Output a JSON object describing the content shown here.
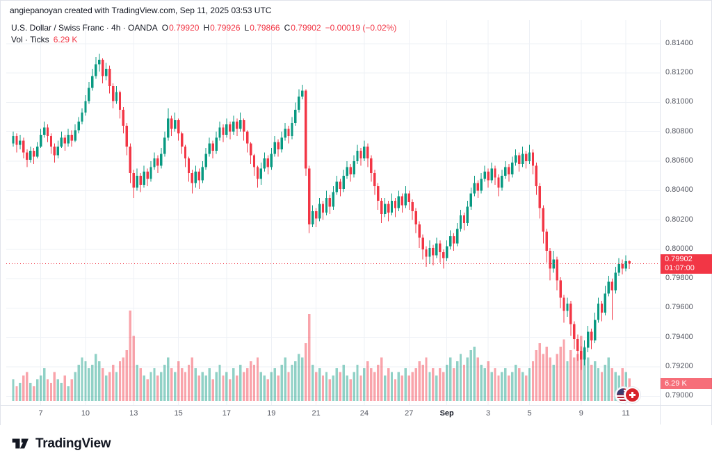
{
  "attribution": "angiepanoyan created with TradingView.com, Sep 11, 2025 03:53 UTC",
  "legend": {
    "title": "U.S. Dollar / Swiss Franc · 4h · OANDA",
    "ohlc": [
      {
        "label": "O",
        "value": "0.79920"
      },
      {
        "label": "H",
        "value": "0.79926"
      },
      {
        "label": "L",
        "value": "0.79866"
      },
      {
        "label": "C",
        "value": "0.79902"
      }
    ],
    "change": "−0.00019 (−0.02%)",
    "volume_label": "Vol · Ticks",
    "volume_value": "6.29 K"
  },
  "badges": {
    "price": "0.79902",
    "countdown": "01:07:00",
    "volume": "6.29 K"
  },
  "footer": {
    "brand": "TradingView"
  },
  "colors": {
    "up": "#089981",
    "down": "#F23645",
    "vol_up": "rgba(8,153,129,0.45)",
    "vol_down": "rgba(242,54,69,0.45)",
    "grid": "#eef1f6",
    "axis_text": "#50535e",
    "last_price_line": "#F23645"
  },
  "chart_data": {
    "type": "candlestick",
    "title": "U.S. Dollar / Swiss Franc",
    "interval": "4h",
    "exchange": "OANDA",
    "last_price": 0.79902,
    "price_axis": {
      "min": 0.7894,
      "max": 0.8156,
      "ticks": [
        "0.81400",
        "0.81200",
        "0.81000",
        "0.80800",
        "0.80600",
        "0.80400",
        "0.80200",
        "0.80000",
        "0.79800",
        "0.79600",
        "0.79400",
        "0.79200",
        "0.79000"
      ]
    },
    "time_axis": [
      {
        "label": "7",
        "index": 8
      },
      {
        "label": "10",
        "index": 21
      },
      {
        "label": "13",
        "index": 35
      },
      {
        "label": "15",
        "index": 48
      },
      {
        "label": "17",
        "index": 62
      },
      {
        "label": "19",
        "index": 75
      },
      {
        "label": "21",
        "index": 88
      },
      {
        "label": "24",
        "index": 102
      },
      {
        "label": "27",
        "index": 115
      },
      {
        "label": "Sep",
        "index": 126,
        "bold": true
      },
      {
        "label": "3",
        "index": 138
      },
      {
        "label": "5",
        "index": 150
      },
      {
        "label": "9",
        "index": 165
      },
      {
        "label": "11",
        "index": 178
      }
    ],
    "vol_max": 25,
    "columns": [
      "open",
      "high",
      "low",
      "close",
      "volume_k"
    ],
    "candles": [
      [
        0.8072,
        0.808,
        0.807,
        0.8077,
        6
      ],
      [
        0.8077,
        0.8079,
        0.8066,
        0.8071,
        4
      ],
      [
        0.8071,
        0.8078,
        0.8068,
        0.8074,
        5
      ],
      [
        0.8074,
        0.8076,
        0.8062,
        0.8066,
        7
      ],
      [
        0.8066,
        0.8068,
        0.8056,
        0.8061,
        8
      ],
      [
        0.8061,
        0.807,
        0.8059,
        0.8067,
        5
      ],
      [
        0.8067,
        0.8069,
        0.8058,
        0.8063,
        4
      ],
      [
        0.8063,
        0.8073,
        0.8062,
        0.807,
        6
      ],
      [
        0.807,
        0.8082,
        0.8069,
        0.8078,
        7
      ],
      [
        0.8078,
        0.8087,
        0.8076,
        0.8083,
        9
      ],
      [
        0.8083,
        0.8085,
        0.8073,
        0.8077,
        6
      ],
      [
        0.8077,
        0.8079,
        0.8065,
        0.807,
        5
      ],
      [
        0.807,
        0.8072,
        0.8059,
        0.8064,
        8
      ],
      [
        0.8064,
        0.8074,
        0.8062,
        0.807,
        6
      ],
      [
        0.807,
        0.808,
        0.8069,
        0.8076,
        5
      ],
      [
        0.8076,
        0.8078,
        0.8067,
        0.8072,
        7
      ],
      [
        0.8072,
        0.8082,
        0.807,
        0.8078,
        4
      ],
      [
        0.8078,
        0.8081,
        0.807,
        0.8074,
        6
      ],
      [
        0.8074,
        0.8085,
        0.8073,
        0.8081,
        8
      ],
      [
        0.8081,
        0.809,
        0.8079,
        0.8087,
        10
      ],
      [
        0.8087,
        0.8096,
        0.8085,
        0.8093,
        12
      ],
      [
        0.8093,
        0.8105,
        0.8091,
        0.8101,
        11
      ],
      [
        0.8101,
        0.8114,
        0.8099,
        0.811,
        9
      ],
      [
        0.811,
        0.8123,
        0.8108,
        0.8118,
        10
      ],
      [
        0.8118,
        0.8131,
        0.8116,
        0.8126,
        13
      ],
      [
        0.8126,
        0.8133,
        0.8121,
        0.8129,
        11
      ],
      [
        0.8129,
        0.813,
        0.8113,
        0.8118,
        9
      ],
      [
        0.8118,
        0.8127,
        0.8115,
        0.8123,
        7
      ],
      [
        0.8123,
        0.8125,
        0.8106,
        0.8111,
        8
      ],
      [
        0.8111,
        0.8113,
        0.8096,
        0.8101,
        10
      ],
      [
        0.8101,
        0.8111,
        0.8099,
        0.8107,
        8
      ],
      [
        0.8107,
        0.8108,
        0.8089,
        0.8095,
        11
      ],
      [
        0.8095,
        0.8097,
        0.8079,
        0.8084,
        12
      ],
      [
        0.8084,
        0.8086,
        0.8064,
        0.807,
        14
      ],
      [
        0.807,
        0.8072,
        0.8045,
        0.8052,
        25
      ],
      [
        0.8052,
        0.8054,
        0.8035,
        0.8042,
        18
      ],
      [
        0.8042,
        0.8055,
        0.804,
        0.805,
        10
      ],
      [
        0.805,
        0.8052,
        0.8039,
        0.8044,
        9
      ],
      [
        0.8044,
        0.8057,
        0.8042,
        0.8053,
        7
      ],
      [
        0.8053,
        0.8055,
        0.8043,
        0.8048,
        6
      ],
      [
        0.8048,
        0.806,
        0.8046,
        0.8056,
        8
      ],
      [
        0.8056,
        0.8066,
        0.8054,
        0.8062,
        9
      ],
      [
        0.8062,
        0.8064,
        0.8052,
        0.8057,
        7
      ],
      [
        0.8057,
        0.8069,
        0.8055,
        0.8065,
        8
      ],
      [
        0.8065,
        0.808,
        0.8063,
        0.8076,
        10
      ],
      [
        0.8076,
        0.8096,
        0.8074,
        0.8089,
        12
      ],
      [
        0.8089,
        0.8091,
        0.8077,
        0.8082,
        9
      ],
      [
        0.8082,
        0.8093,
        0.808,
        0.8088,
        8
      ],
      [
        0.8088,
        0.8089,
        0.8074,
        0.8079,
        11
      ],
      [
        0.8079,
        0.808,
        0.8065,
        0.807,
        9
      ],
      [
        0.807,
        0.8071,
        0.8056,
        0.8062,
        8
      ],
      [
        0.8062,
        0.8063,
        0.8046,
        0.8052,
        10
      ],
      [
        0.8052,
        0.8054,
        0.8038,
        0.8045,
        12
      ],
      [
        0.8045,
        0.8057,
        0.8042,
        0.8053,
        9
      ],
      [
        0.8053,
        0.8055,
        0.8041,
        0.8047,
        7
      ],
      [
        0.8047,
        0.806,
        0.8045,
        0.8056,
        8
      ],
      [
        0.8056,
        0.8069,
        0.8054,
        0.8065,
        7
      ],
      [
        0.8065,
        0.8076,
        0.8063,
        0.8072,
        9
      ],
      [
        0.8072,
        0.8074,
        0.8062,
        0.8067,
        6
      ],
      [
        0.8067,
        0.808,
        0.8065,
        0.8076,
        8
      ],
      [
        0.8076,
        0.8087,
        0.8074,
        0.8083,
        10
      ],
      [
        0.8083,
        0.8085,
        0.8073,
        0.8078,
        7
      ],
      [
        0.8078,
        0.8089,
        0.8076,
        0.8085,
        8
      ],
      [
        0.8085,
        0.8087,
        0.8075,
        0.808,
        6
      ],
      [
        0.808,
        0.8091,
        0.8078,
        0.8087,
        9
      ],
      [
        0.8087,
        0.8089,
        0.8077,
        0.8082,
        7
      ],
      [
        0.8082,
        0.8093,
        0.808,
        0.8088,
        10
      ],
      [
        0.8088,
        0.8089,
        0.8074,
        0.808,
        8
      ],
      [
        0.808,
        0.8081,
        0.8066,
        0.8072,
        9
      ],
      [
        0.8072,
        0.8073,
        0.8058,
        0.8064,
        11
      ],
      [
        0.8064,
        0.8065,
        0.805,
        0.8056,
        10
      ],
      [
        0.8056,
        0.8057,
        0.8042,
        0.8048,
        12
      ],
      [
        0.8048,
        0.8059,
        0.8044,
        0.8055,
        8
      ],
      [
        0.8055,
        0.8066,
        0.8053,
        0.8062,
        7
      ],
      [
        0.8062,
        0.8064,
        0.8051,
        0.8056,
        6
      ],
      [
        0.8056,
        0.8069,
        0.8054,
        0.8065,
        8
      ],
      [
        0.8065,
        0.8077,
        0.8063,
        0.8073,
        9
      ],
      [
        0.8073,
        0.8075,
        0.8063,
        0.8068,
        7
      ],
      [
        0.8068,
        0.808,
        0.8066,
        0.8076,
        10
      ],
      [
        0.8076,
        0.8086,
        0.8074,
        0.8082,
        12
      ],
      [
        0.8082,
        0.8084,
        0.8072,
        0.8077,
        8
      ],
      [
        0.8077,
        0.809,
        0.8075,
        0.8086,
        10
      ],
      [
        0.8086,
        0.81,
        0.8084,
        0.8095,
        11
      ],
      [
        0.8095,
        0.8109,
        0.8093,
        0.8104,
        13
      ],
      [
        0.8104,
        0.8112,
        0.8102,
        0.8108,
        12
      ],
      [
        0.8108,
        0.8109,
        0.805,
        0.8055,
        16
      ],
      [
        0.8055,
        0.8057,
        0.8011,
        0.8017,
        24
      ],
      [
        0.8017,
        0.803,
        0.8015,
        0.8026,
        10
      ],
      [
        0.8026,
        0.8028,
        0.8015,
        0.8021,
        8
      ],
      [
        0.8021,
        0.8035,
        0.8019,
        0.8031,
        9
      ],
      [
        0.8031,
        0.8033,
        0.802,
        0.8025,
        7
      ],
      [
        0.8025,
        0.804,
        0.8023,
        0.8035,
        8
      ],
      [
        0.8035,
        0.8037,
        0.8024,
        0.8029,
        6
      ],
      [
        0.8029,
        0.8043,
        0.8027,
        0.8039,
        7
      ],
      [
        0.8039,
        0.805,
        0.8037,
        0.8046,
        9
      ],
      [
        0.8046,
        0.8048,
        0.8036,
        0.8041,
        8
      ],
      [
        0.8041,
        0.8054,
        0.8039,
        0.805,
        10
      ],
      [
        0.805,
        0.806,
        0.8048,
        0.8056,
        7
      ],
      [
        0.8056,
        0.8058,
        0.8046,
        0.8051,
        6
      ],
      [
        0.8051,
        0.8064,
        0.8049,
        0.806,
        8
      ],
      [
        0.806,
        0.8071,
        0.8058,
        0.8067,
        10
      ],
      [
        0.8067,
        0.8069,
        0.8057,
        0.8062,
        7
      ],
      [
        0.8062,
        0.8074,
        0.806,
        0.807,
        9
      ],
      [
        0.807,
        0.8072,
        0.8056,
        0.8062,
        11
      ],
      [
        0.8062,
        0.8064,
        0.8046,
        0.8052,
        9
      ],
      [
        0.8052,
        0.8054,
        0.8037,
        0.8043,
        8
      ],
      [
        0.8043,
        0.8045,
        0.8027,
        0.8033,
        10
      ],
      [
        0.8033,
        0.8035,
        0.8018,
        0.8024,
        12
      ],
      [
        0.8024,
        0.8035,
        0.8022,
        0.8031,
        7
      ],
      [
        0.8031,
        0.8033,
        0.8019,
        0.8025,
        9
      ],
      [
        0.8025,
        0.8038,
        0.8023,
        0.8033,
        8
      ],
      [
        0.8033,
        0.8035,
        0.8022,
        0.8028,
        6
      ],
      [
        0.8028,
        0.804,
        0.8026,
        0.8036,
        8
      ],
      [
        0.8036,
        0.8038,
        0.8025,
        0.803,
        7
      ],
      [
        0.803,
        0.8043,
        0.8028,
        0.8038,
        9
      ],
      [
        0.8038,
        0.804,
        0.8027,
        0.8032,
        7
      ],
      [
        0.8032,
        0.8034,
        0.802,
        0.8026,
        8
      ],
      [
        0.8026,
        0.8028,
        0.8011,
        0.8017,
        9
      ],
      [
        0.8017,
        0.8019,
        0.8001,
        0.8008,
        11
      ],
      [
        0.8008,
        0.801,
        0.7993,
        0.8,
        10
      ],
      [
        0.8,
        0.8002,
        0.7988,
        0.7995,
        12
      ],
      [
        0.7995,
        0.8006,
        0.799,
        0.8001,
        8
      ],
      [
        0.8001,
        0.8003,
        0.7989,
        0.7996,
        9
      ],
      [
        0.7996,
        0.8008,
        0.7994,
        0.8004,
        7
      ],
      [
        0.8004,
        0.8006,
        0.7991,
        0.7998,
        9
      ],
      [
        0.7998,
        0.8,
        0.7987,
        0.7994,
        8
      ],
      [
        0.7994,
        0.8006,
        0.7992,
        0.8002,
        10
      ],
      [
        0.8002,
        0.8013,
        0.8,
        0.8009,
        12
      ],
      [
        0.8009,
        0.8011,
        0.7999,
        0.8004,
        9
      ],
      [
        0.8004,
        0.8018,
        0.8002,
        0.8014,
        11
      ],
      [
        0.8014,
        0.8027,
        0.8012,
        0.8023,
        13
      ],
      [
        0.8023,
        0.8025,
        0.8013,
        0.8018,
        10
      ],
      [
        0.8018,
        0.8033,
        0.8016,
        0.8029,
        12
      ],
      [
        0.8029,
        0.8042,
        0.8027,
        0.8038,
        14
      ],
      [
        0.8038,
        0.805,
        0.8036,
        0.8045,
        15
      ],
      [
        0.8045,
        0.8047,
        0.8035,
        0.804,
        12
      ],
      [
        0.804,
        0.8052,
        0.8038,
        0.8048,
        10
      ],
      [
        0.8048,
        0.8057,
        0.8046,
        0.8053,
        9
      ],
      [
        0.8053,
        0.8055,
        0.8042,
        0.8047,
        11
      ],
      [
        0.8047,
        0.8059,
        0.8045,
        0.8055,
        8
      ],
      [
        0.8055,
        0.8057,
        0.8044,
        0.8049,
        9
      ],
      [
        0.8049,
        0.8051,
        0.8036,
        0.8042,
        7
      ],
      [
        0.8042,
        0.8054,
        0.804,
        0.805,
        8
      ],
      [
        0.805,
        0.806,
        0.8048,
        0.8056,
        9
      ],
      [
        0.8056,
        0.8058,
        0.8046,
        0.8051,
        7
      ],
      [
        0.8051,
        0.8063,
        0.8049,
        0.8059,
        8
      ],
      [
        0.8059,
        0.8068,
        0.8057,
        0.8064,
        10
      ],
      [
        0.8064,
        0.8066,
        0.8053,
        0.8058,
        9
      ],
      [
        0.8058,
        0.807,
        0.8056,
        0.8065,
        8
      ],
      [
        0.8065,
        0.8067,
        0.8055,
        0.806,
        7
      ],
      [
        0.806,
        0.8071,
        0.8058,
        0.8066,
        9
      ],
      [
        0.8066,
        0.8068,
        0.8051,
        0.8057,
        11
      ],
      [
        0.8057,
        0.8059,
        0.8037,
        0.8043,
        14
      ],
      [
        0.8043,
        0.8045,
        0.8021,
        0.8028,
        16
      ],
      [
        0.8028,
        0.803,
        0.8004,
        0.8012,
        13
      ],
      [
        0.8012,
        0.8014,
        0.7991,
        0.7999,
        15
      ],
      [
        0.7999,
        0.8001,
        0.7979,
        0.7987,
        12
      ],
      [
        0.7987,
        0.7999,
        0.7984,
        0.7993,
        10
      ],
      [
        0.7993,
        0.7995,
        0.7972,
        0.7979,
        13
      ],
      [
        0.7979,
        0.7981,
        0.796,
        0.7967,
        15
      ],
      [
        0.7967,
        0.7969,
        0.795,
        0.7958,
        17
      ],
      [
        0.7958,
        0.7967,
        0.7954,
        0.7963,
        11
      ],
      [
        0.7963,
        0.7965,
        0.7941,
        0.7949,
        14
      ],
      [
        0.7949,
        0.7951,
        0.7932,
        0.7939,
        12
      ],
      [
        0.7939,
        0.7942,
        0.7924,
        0.7931,
        13
      ],
      [
        0.7931,
        0.7934,
        0.7918,
        0.7925,
        18
      ],
      [
        0.7925,
        0.7938,
        0.7921,
        0.7933,
        15
      ],
      [
        0.7933,
        0.7948,
        0.793,
        0.7944,
        12
      ],
      [
        0.7944,
        0.7946,
        0.7932,
        0.7938,
        10
      ],
      [
        0.7938,
        0.7957,
        0.7936,
        0.7952,
        11
      ],
      [
        0.7952,
        0.7967,
        0.795,
        0.7963,
        9
      ],
      [
        0.7963,
        0.7965,
        0.7951,
        0.7957,
        8
      ],
      [
        0.7957,
        0.7975,
        0.7955,
        0.797,
        10
      ],
      [
        0.797,
        0.7982,
        0.7968,
        0.7978,
        12
      ],
      [
        0.7978,
        0.798,
        0.7952,
        0.7972,
        9
      ],
      [
        0.7972,
        0.7988,
        0.797,
        0.7984,
        8
      ],
      [
        0.7984,
        0.7994,
        0.7982,
        0.799,
        7
      ],
      [
        0.799,
        0.7993,
        0.7983,
        0.7987,
        9
      ],
      [
        0.7987,
        0.7996,
        0.7985,
        0.7992,
        8
      ],
      [
        0.7992,
        0.79926,
        0.79866,
        0.79902,
        6.29
      ]
    ]
  }
}
